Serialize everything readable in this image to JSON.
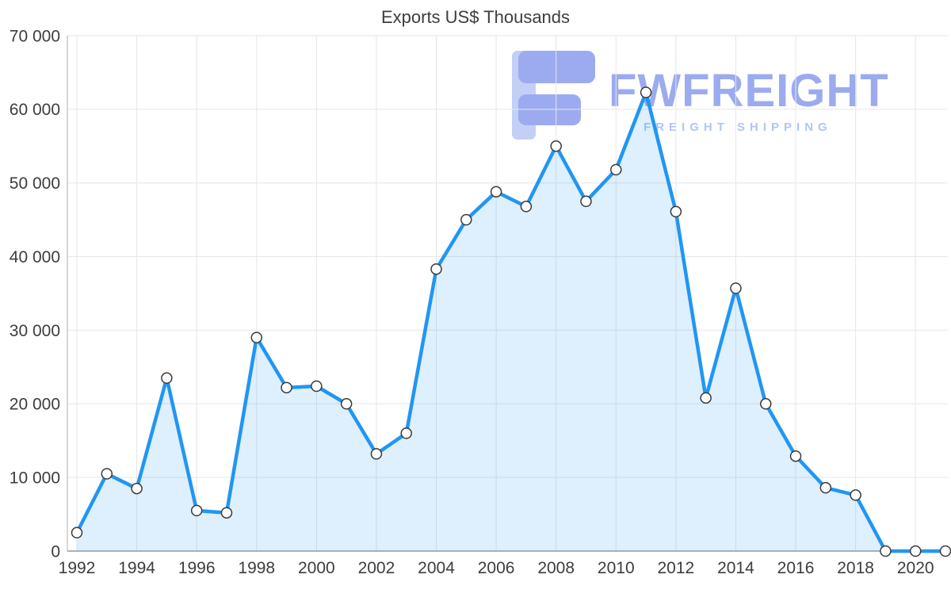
{
  "title": "Exports US$ Thousands",
  "watermark": {
    "brand": "FWFREIGHT",
    "tagline": "FREIGHT SHIPPING"
  },
  "chart_data": {
    "type": "area",
    "title": "Exports US$ Thousands",
    "xlabel": "",
    "ylabel": "",
    "x": [
      1992,
      1993,
      1994,
      1995,
      1996,
      1997,
      1998,
      1999,
      2000,
      2001,
      2002,
      2003,
      2004,
      2005,
      2006,
      2007,
      2008,
      2009,
      2010,
      2011,
      2012,
      2013,
      2014,
      2015,
      2016,
      2017,
      2018,
      2019,
      2020,
      2021
    ],
    "values": [
      2500,
      10500,
      8500,
      23500,
      5500,
      5200,
      29000,
      22200,
      22400,
      20000,
      13200,
      16000,
      38300,
      45000,
      48800,
      46800,
      55000,
      47500,
      51800,
      62300,
      46100,
      20800,
      35700,
      20000,
      12900,
      8600,
      7600,
      0,
      0,
      0
    ],
    "ylim": [
      0,
      70000
    ],
    "y_ticks": [
      0,
      10000,
      20000,
      30000,
      40000,
      50000,
      60000,
      70000
    ],
    "x_ticks": [
      1992,
      1994,
      1996,
      1998,
      2000,
      2002,
      2004,
      2006,
      2008,
      2010,
      2012,
      2014,
      2016,
      2018,
      2020
    ],
    "grid": true,
    "legend": "none",
    "line_color": "#2196f3",
    "area_color": "rgba(33,150,243,0.15)",
    "grid_color": "#e6e6e6",
    "y_axis_color": "#c9c9c9",
    "x_axis_color": "#9a9a9a",
    "marker_fill": "#ffffff",
    "marker_stroke": "#3a3a3a"
  }
}
